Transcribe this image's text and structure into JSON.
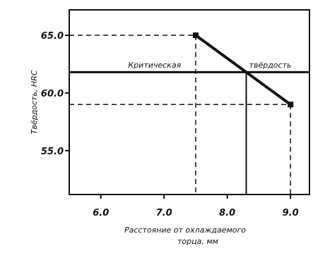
{
  "chart_data": {
    "type": "line",
    "title": "",
    "xlabel_lines": [
      "Расстояние от охлаждаемого",
      "торца, мм"
    ],
    "ylabel": "Твёрдость, HRC",
    "xlim": [
      5.5,
      9.3
    ],
    "ylim": [
      51.2,
      67.2
    ],
    "x_ticks": [
      {
        "value": 6.0,
        "label": "6.0"
      },
      {
        "value": 7.0,
        "label": "7.0"
      },
      {
        "value": 8.0,
        "label": "8.0"
      },
      {
        "value": 9.0,
        "label": "9.0"
      }
    ],
    "y_ticks": [
      {
        "value": 65.0,
        "label": "65.0"
      },
      {
        "value": 60.0,
        "label": "60.0"
      },
      {
        "value": 55.0,
        "label": "55.0"
      }
    ],
    "grid": false,
    "series": [
      {
        "x": [
          7.5,
          9.0
        ],
        "y": [
          65.0,
          59.0
        ]
      }
    ],
    "reference_lines": {
      "critical_hardness": 61.8,
      "critical_distance": 8.3
    },
    "annotations": [
      {
        "text": "Критическая",
        "x": 6.85,
        "y": 62.2
      },
      {
        "text": "твёрдость",
        "x": 8.68,
        "y": 62.2
      }
    ]
  }
}
